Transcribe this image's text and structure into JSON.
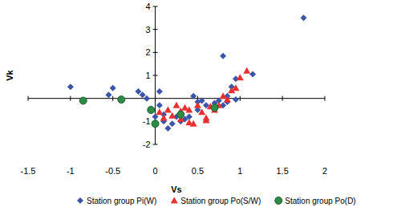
{
  "chart_data": {
    "type": "scatter",
    "x_label": "Vs",
    "y_label": "Vk",
    "xlim": [
      -1.5,
      2
    ],
    "xticks": [
      -1.5,
      -1,
      -0.5,
      0,
      0.5,
      1,
      1.5,
      2
    ],
    "ylim": [
      -2,
      4
    ],
    "yticks": [
      -2,
      -1,
      1,
      2,
      3,
      4
    ],
    "grid": false,
    "legend": "bottom",
    "series": [
      {
        "name": "Station group Pi(W)",
        "color": "#3b55a8",
        "marker": "diamond",
        "x": [
          -1.0,
          -0.5,
          -0.55,
          -0.2,
          -0.15,
          -0.1,
          0.05,
          0.05,
          -0.05,
          0.1,
          0.15,
          0.2,
          0.25,
          0.3,
          0.35,
          0.4,
          0.5,
          0.45,
          0.5,
          0.55,
          0.6,
          0.7,
          0.75,
          0.8,
          0.8,
          0.85,
          0.9,
          0.95,
          0.95,
          1.15,
          1.75,
          0.85,
          0.1,
          0.0
        ],
        "values": [
          0.5,
          0.45,
          0.15,
          0.3,
          0.15,
          0.0,
          -0.3,
          0.3,
          -0.5,
          -1.0,
          -1.3,
          -1.1,
          -0.8,
          -1.0,
          -0.9,
          -0.8,
          -0.5,
          0.1,
          -0.15,
          -0.1,
          -0.3,
          -0.2,
          -0.1,
          1.85,
          -0.3,
          0.1,
          0.5,
          0.85,
          -0.05,
          1.05,
          3.5,
          -0.15,
          -0.7,
          -0.8
        ]
      },
      {
        "name": "Station group Po(S/W)",
        "color": "#e8312f",
        "marker": "triangle",
        "x": [
          0.05,
          0.1,
          0.15,
          0.2,
          0.25,
          0.3,
          0.35,
          0.4,
          0.45,
          0.5,
          0.55,
          0.6,
          0.65,
          0.7,
          0.75,
          0.8,
          0.85,
          0.9,
          0.95,
          1.0,
          1.08,
          0.3,
          0.6,
          0.4
        ],
        "values": [
          -0.6,
          -0.85,
          -0.5,
          -0.75,
          -0.3,
          -0.9,
          -0.4,
          -0.5,
          -1.1,
          -0.3,
          -0.6,
          -0.85,
          -0.35,
          -0.5,
          -0.3,
          0.1,
          -0.05,
          0.35,
          0.45,
          0.9,
          1.2,
          -0.55,
          -0.95,
          -1.05
        ]
      },
      {
        "name": "Station group Po(D)",
        "color": "#2e8b46",
        "marker": "circle",
        "x": [
          -0.85,
          -0.4,
          -0.05,
          0.0,
          0.3,
          0.7
        ],
        "values": [
          -0.1,
          -0.05,
          -0.5,
          -1.1,
          -0.7,
          -0.4
        ]
      }
    ]
  }
}
